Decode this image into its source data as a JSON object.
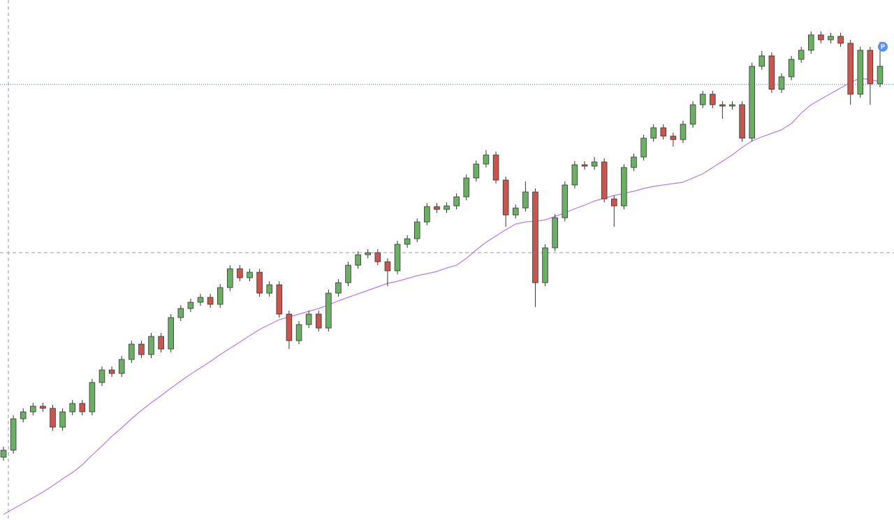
{
  "chart_data": {
    "type": "candlestick",
    "ylim": [
      0,
      745
    ],
    "up_color": "#6aaf63",
    "down_color": "#c7564f",
    "edge_color": "#333333",
    "open": [
      90,
      100,
      145,
      155,
      163,
      160,
      133,
      155,
      167,
      155,
      197,
      215,
      210,
      230,
      252,
      237,
      263,
      245,
      290,
      303,
      312,
      319,
      309,
      333,
      360,
      347,
      355,
      325,
      337,
      295,
      257,
      280,
      295,
      275,
      325,
      340,
      365,
      380,
      383,
      370,
      357,
      395,
      403,
      427,
      449,
      445,
      450,
      463,
      490,
      510,
      523,
      487,
      437,
      447,
      470,
      340,
      390,
      433,
      480,
      509,
      507,
      513,
      460,
      450,
      505,
      520,
      547,
      562,
      550,
      545,
      567,
      595,
      610,
      595,
      593,
      595,
      547,
      650,
      665,
      617,
      635,
      660,
      673,
      695,
      688,
      693,
      683,
      610,
      673,
      625
    ],
    "high": [
      105,
      150,
      160,
      168,
      168,
      165,
      160,
      172,
      172,
      202,
      220,
      220,
      235,
      257,
      257,
      268,
      268,
      295,
      308,
      317,
      324,
      324,
      338,
      365,
      365,
      360,
      360,
      342,
      342,
      300,
      285,
      300,
      300,
      330,
      345,
      370,
      385,
      388,
      388,
      375,
      400,
      408,
      432,
      454,
      454,
      455,
      468,
      495,
      515,
      530,
      528,
      492,
      452,
      485,
      475,
      395,
      438,
      485,
      514,
      514,
      520,
      518,
      465,
      510,
      525,
      552,
      567,
      567,
      555,
      572,
      600,
      615,
      615,
      600,
      600,
      600,
      655,
      672,
      670,
      640,
      665,
      678,
      700,
      700,
      698,
      698,
      688,
      678,
      678,
      685
    ],
    "low": [
      85,
      95,
      140,
      150,
      155,
      128,
      128,
      150,
      150,
      150,
      192,
      205,
      205,
      225,
      232,
      232,
      240,
      240,
      285,
      298,
      307,
      304,
      304,
      328,
      342,
      342,
      320,
      320,
      290,
      245,
      252,
      275,
      270,
      270,
      320,
      335,
      360,
      375,
      365,
      335,
      352,
      390,
      398,
      422,
      440,
      440,
      445,
      458,
      485,
      505,
      482,
      420,
      432,
      442,
      305,
      335,
      385,
      428,
      475,
      502,
      502,
      455,
      420,
      445,
      500,
      515,
      542,
      545,
      535,
      540,
      562,
      590,
      590,
      575,
      588,
      542,
      542,
      645,
      612,
      612,
      630,
      655,
      668,
      683,
      683,
      678,
      595,
      605,
      595,
      620
    ],
    "close": [
      100,
      145,
      155,
      163,
      160,
      133,
      155,
      167,
      155,
      197,
      215,
      210,
      230,
      252,
      237,
      263,
      245,
      290,
      303,
      312,
      319,
      309,
      333,
      360,
      347,
      355,
      325,
      337,
      295,
      257,
      280,
      295,
      275,
      325,
      340,
      365,
      380,
      383,
      370,
      357,
      395,
      403,
      427,
      449,
      445,
      450,
      463,
      490,
      510,
      523,
      487,
      437,
      447,
      470,
      340,
      390,
      433,
      480,
      509,
      507,
      513,
      460,
      450,
      505,
      520,
      547,
      562,
      550,
      545,
      567,
      595,
      610,
      595,
      593,
      595,
      547,
      650,
      665,
      617,
      635,
      660,
      673,
      695,
      688,
      693,
      683,
      610,
      673,
      625,
      650
    ],
    "moving_average": {
      "color": "#b57bec",
      "values": [
        8,
        16,
        24,
        32,
        40,
        49,
        59,
        68,
        79,
        93,
        106,
        120,
        132,
        145,
        157,
        168,
        178,
        189,
        199,
        209,
        218,
        227,
        237,
        246,
        255,
        264,
        273,
        280,
        287,
        291,
        295,
        299,
        303,
        308,
        314,
        319,
        324,
        329,
        334,
        339,
        342,
        346,
        350,
        353,
        356,
        361,
        365,
        375,
        387,
        398,
        407,
        416,
        424,
        427,
        428,
        430,
        435,
        440,
        446,
        451,
        457,
        461,
        465,
        468,
        471,
        475,
        478,
        480,
        482,
        484,
        490,
        496,
        505,
        514,
        523,
        534,
        543,
        549,
        554,
        559,
        568,
        583,
        595,
        603,
        611,
        619,
        627,
        633,
        631,
        628
      ]
    },
    "price_line": {
      "value": 624,
      "color": "#2f5fd8"
    },
    "marker_label": "P",
    "marker_color": "#5b8ff0"
  }
}
